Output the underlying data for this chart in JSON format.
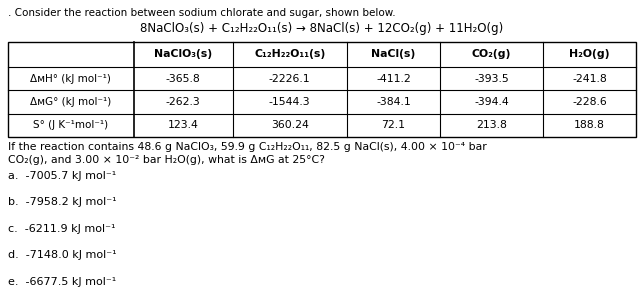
{
  "title_line1": ". Consider the reaction between sodium chlorate and sugar, shown below.",
  "title_line2": "8NaClO₃(s) + C₁₂H₂₂O₁₁(s) → 8NaCl(s) + 12CO₂(g) + 11H₂O(g)",
  "col_headers": [
    "NaClO₃(s)",
    "C₁₂H₂₂O₁₁(s)",
    "NaCl(s)",
    "CO₂(g)",
    "H₂O(g)"
  ],
  "row_headers": [
    "ΔᴍH° (kJ mol⁻¹)",
    "ΔᴍG° (kJ mol⁻¹)",
    "S° (J K⁻¹mol⁻¹)"
  ],
  "table_data": [
    [
      "-365.8",
      "-2226.1",
      "-411.2",
      "-393.5",
      "-241.8"
    ],
    [
      "-262.3",
      "-1544.3",
      "-384.1",
      "-394.4",
      "-228.6"
    ],
    [
      "123.4",
      "360.24",
      "72.1",
      "213.8",
      "188.8"
    ]
  ],
  "question_line1": "If the reaction contains 48.6 g NaClO₃, 59.9 g C₁₂H₂₂O₁₁, 82.5 g NaCl(s), 4.00 × 10⁻⁴ bar",
  "question_line2": "CO₂(g), and 3.00 × 10⁻² bar H₂O(g), what is ΔᴍG at 25°C?",
  "choices": [
    "a.  -7005.7 kJ mol⁻¹",
    "b.  -7958.2 kJ mol⁻¹",
    "c.  -6211.9 kJ mol⁻¹",
    "d.  -7148.0 kJ mol⁻¹",
    "e.  -6677.5 kJ mol⁻¹"
  ],
  "bg_color": "#ffffff",
  "text_color": "#000000",
  "table_border_color": "#000000",
  "fontsize_title": 7.5,
  "fontsize_equation": 8.5,
  "fontsize_table_header": 7.8,
  "fontsize_table_data": 7.8,
  "fontsize_row_header": 7.5,
  "fontsize_question": 7.8,
  "fontsize_choices": 8.0
}
